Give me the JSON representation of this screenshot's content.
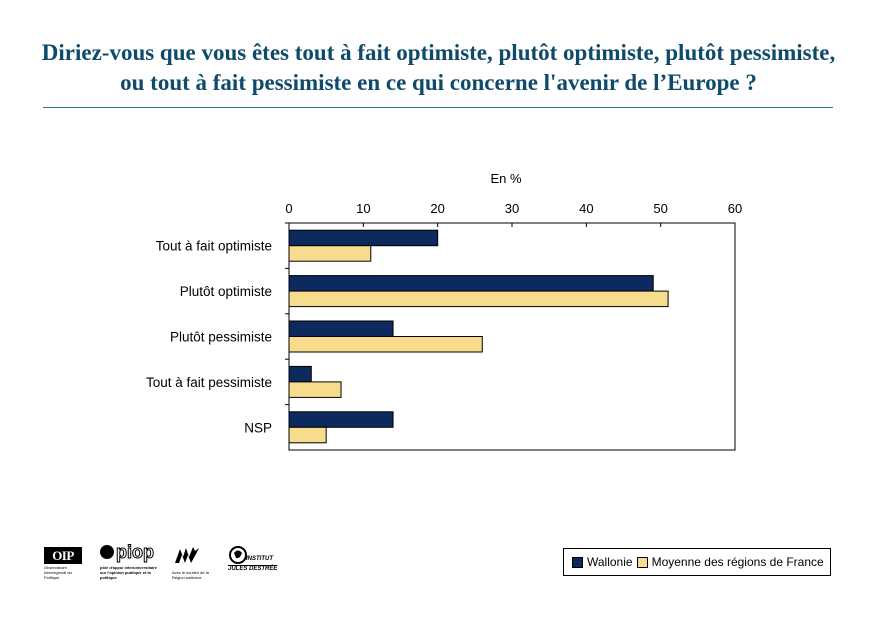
{
  "title": "Diriez-vous que vous êtes tout à fait optimiste, plutôt optimiste, plutôt pessimiste, ou tout à fait pessimiste en ce qui concerne l'avenir de l’Europe ?",
  "chart_data": {
    "type": "bar",
    "orientation": "horizontal",
    "title": "Diriez-vous que vous êtes tout à fait optimiste, plutôt optimiste, plutôt pessimiste, ou tout à fait pessimiste en ce qui concerne l'avenir de l’Europe ?",
    "xlabel": "En %",
    "ylabel": "",
    "xlim": [
      0,
      60
    ],
    "xticks": [
      0,
      10,
      20,
      30,
      40,
      50,
      60
    ],
    "xtick_position": "top",
    "grid": false,
    "legend_position": "bottom-right",
    "categories": [
      "Tout à fait optimiste",
      "Plutôt optimiste",
      "Plutôt pessimiste",
      "Tout à fait pessimiste",
      "NSP"
    ],
    "series": [
      {
        "name": "Wallonie",
        "color": "#0d2a5e",
        "values": [
          20,
          49,
          14,
          3,
          14
        ]
      },
      {
        "name": "Moyenne des régions de France",
        "color": "#f7dc8e",
        "values": [
          11,
          51,
          26,
          7,
          5
        ]
      }
    ]
  },
  "logos": {
    "oip": {
      "name": "OIP",
      "caption": "Observatoire Interrégional du Politique"
    },
    "piop": {
      "name": "piop",
      "caption": "pôle d'appui interuniversitaire sur l'opinion publique et la politique"
    },
    "region": {
      "caption": "Avec le soutien de la Région wallonne"
    },
    "ijd": {
      "line1": "INSTITUT",
      "line2": "JULES DESTRÉE"
    }
  }
}
